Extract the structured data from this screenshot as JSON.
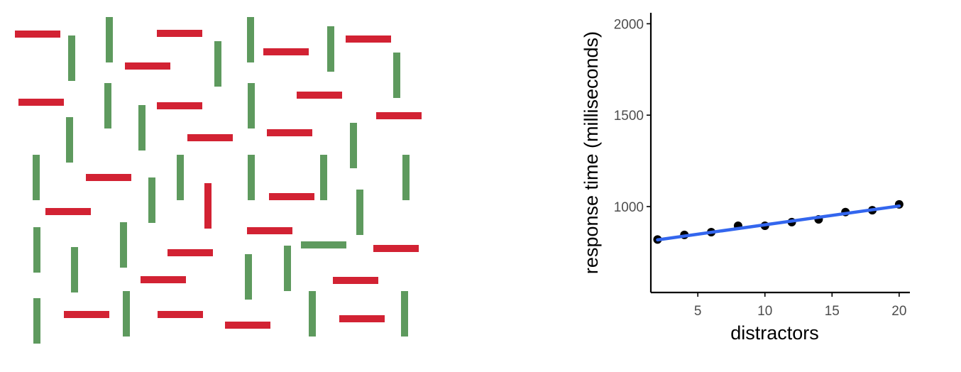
{
  "chart_data": {
    "type": "scatter",
    "xlabel": "distractors",
    "ylabel": "response time (milliseconds)",
    "xlim": [
      1.5,
      20.8
    ],
    "ylim": [
      530,
      2060
    ],
    "x_ticks": [
      5,
      10,
      15,
      20
    ],
    "y_ticks": [
      1000,
      1500,
      2000
    ],
    "grid": false,
    "legend": "none",
    "series": [
      {
        "kind": "points",
        "color": "#000000",
        "x": [
          2,
          4,
          6,
          8,
          10,
          12,
          14,
          16,
          18,
          20
        ],
        "y": [
          820,
          845,
          860,
          895,
          895,
          915,
          930,
          970,
          980,
          1012
        ]
      },
      {
        "kind": "regression-line",
        "color": "#3366ee",
        "x": [
          2,
          20
        ],
        "y": [
          818,
          1003
        ]
      }
    ]
  },
  "stimulus": {
    "colors": {
      "red": "#d22233",
      "green": "#5e9a5e"
    },
    "horizontal_color": "red",
    "vertical_color": "green",
    "odd_items": [
      "red-vertical",
      "green-horizontal"
    ]
  }
}
